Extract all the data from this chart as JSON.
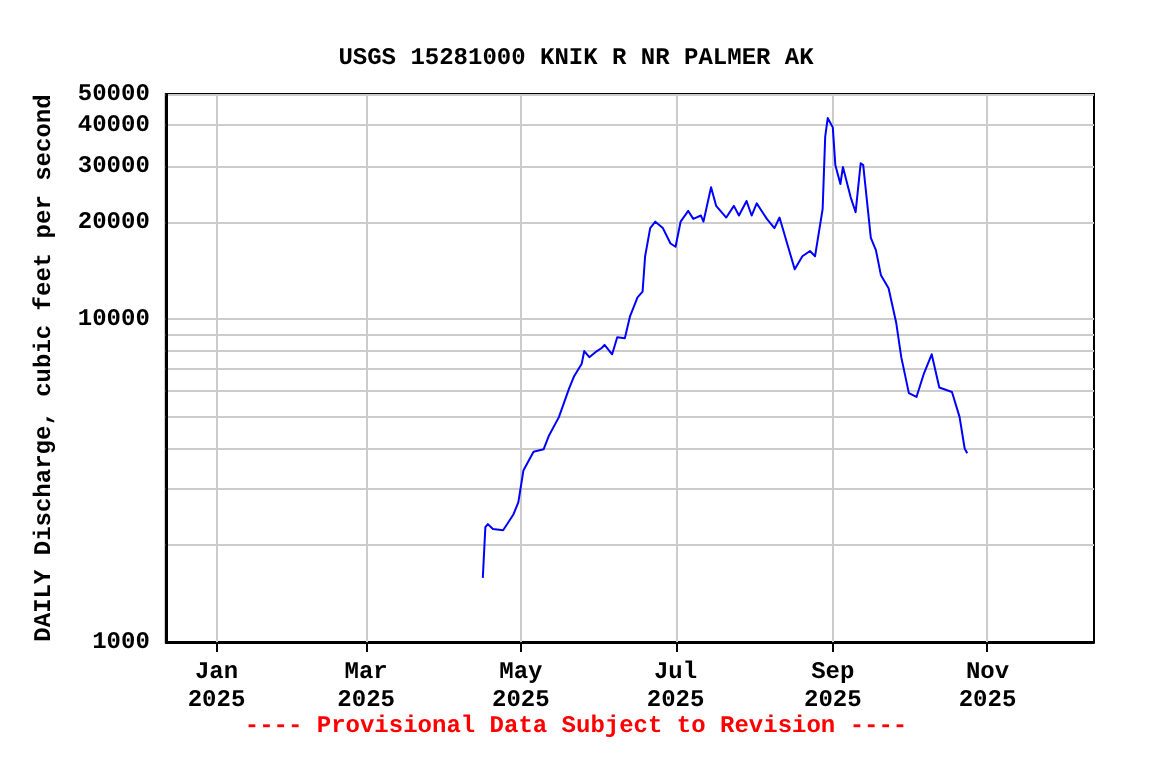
{
  "chart_data": {
    "type": "line",
    "title": "USGS 15281000 KNIK R NR PALMER AK",
    "ylabel": "DAILY Discharge, cubic feet per second",
    "annotations": [
      "---- Provisional Data Subject to Revision ----"
    ],
    "x": [
      "2025-04-16",
      "2025-04-17",
      "2025-04-18",
      "2025-04-20",
      "2025-04-24",
      "2025-04-28",
      "2025-04-30",
      "2025-05-02",
      "2025-05-06",
      "2025-05-10",
      "2025-05-12",
      "2025-05-16",
      "2025-05-20",
      "2025-05-22",
      "2025-05-25",
      "2025-05-26",
      "2025-05-28",
      "2025-05-31",
      "2025-06-02",
      "2025-06-03",
      "2025-06-06",
      "2025-06-08",
      "2025-06-11",
      "2025-06-13",
      "2025-06-16",
      "2025-06-18",
      "2025-06-19",
      "2025-06-21",
      "2025-06-23",
      "2025-06-26",
      "2025-06-29",
      "2025-07-01",
      "2025-07-03",
      "2025-07-06",
      "2025-07-08",
      "2025-07-11",
      "2025-07-12",
      "2025-07-15",
      "2025-07-17",
      "2025-07-21",
      "2025-07-24",
      "2025-07-26",
      "2025-07-29",
      "2025-07-31",
      "2025-08-02",
      "2025-08-06",
      "2025-08-09",
      "2025-08-11",
      "2025-08-14",
      "2025-08-17",
      "2025-08-20",
      "2025-08-23",
      "2025-08-25",
      "2025-08-28",
      "2025-08-29",
      "2025-08-30",
      "2025-09-01",
      "2025-09-02",
      "2025-09-04",
      "2025-09-05",
      "2025-09-08",
      "2025-09-10",
      "2025-09-12",
      "2025-09-13",
      "2025-09-16",
      "2025-09-18",
      "2025-09-20",
      "2025-09-23",
      "2025-09-26",
      "2025-09-28",
      "2025-10-01",
      "2025-10-04",
      "2025-10-07",
      "2025-10-10",
      "2025-10-13",
      "2025-10-18",
      "2025-10-21",
      "2025-10-23",
      "2025-10-24"
    ],
    "series": [
      {
        "color": "#0000ff",
        "values": [
          1580,
          2270,
          2320,
          2240,
          2220,
          2480,
          2710,
          3400,
          3890,
          3960,
          4350,
          4980,
          6100,
          6670,
          7290,
          7980,
          7640,
          7980,
          8170,
          8340,
          7800,
          8810,
          8740,
          10200,
          11700,
          12200,
          15700,
          19200,
          20100,
          19200,
          17200,
          16800,
          20100,
          21700,
          20500,
          21000,
          20100,
          25700,
          22500,
          20700,
          22500,
          21000,
          23300,
          21000,
          22900,
          20500,
          19200,
          20700,
          17200,
          14300,
          15700,
          16300,
          15700,
          22000,
          36800,
          42100,
          39400,
          30100,
          26300,
          29700,
          24000,
          21500,
          30500,
          30100,
          17900,
          16400,
          13700,
          12500,
          9770,
          7640,
          5910,
          5750,
          6820,
          7800,
          6150,
          5960,
          4980,
          3980,
          3850
        ]
      }
    ],
    "log": "y",
    "grid": true,
    "marker": "none",
    "line_style": "solid",
    "xlim": [
      "2024-12-12",
      "2025-12-13"
    ],
    "xticks": [
      {
        "value": "2025-01-01",
        "label": "Jan\n2025"
      },
      {
        "value": "2025-03-01",
        "label": "Mar\n2025"
      },
      {
        "value": "2025-05-01",
        "label": "May\n2025"
      },
      {
        "value": "2025-07-01",
        "label": "Jul\n2025"
      },
      {
        "value": "2025-09-01",
        "label": "Sep\n2025"
      },
      {
        "value": "2025-11-01",
        "label": "Nov\n2025"
      }
    ],
    "ylim": [
      1000,
      50000
    ],
    "yticks": [
      1000,
      {
        "value": 2000,
        "label": null
      },
      {
        "value": 3000,
        "label": null
      },
      {
        "value": 4000,
        "label": null
      },
      {
        "value": 5000,
        "label": null
      },
      {
        "value": 6000,
        "label": null
      },
      {
        "value": 7000,
        "label": null
      },
      {
        "value": 8000,
        "label": null
      },
      {
        "value": 9000,
        "label": null
      },
      10000,
      20000,
      30000,
      40000,
      50000
    ]
  }
}
